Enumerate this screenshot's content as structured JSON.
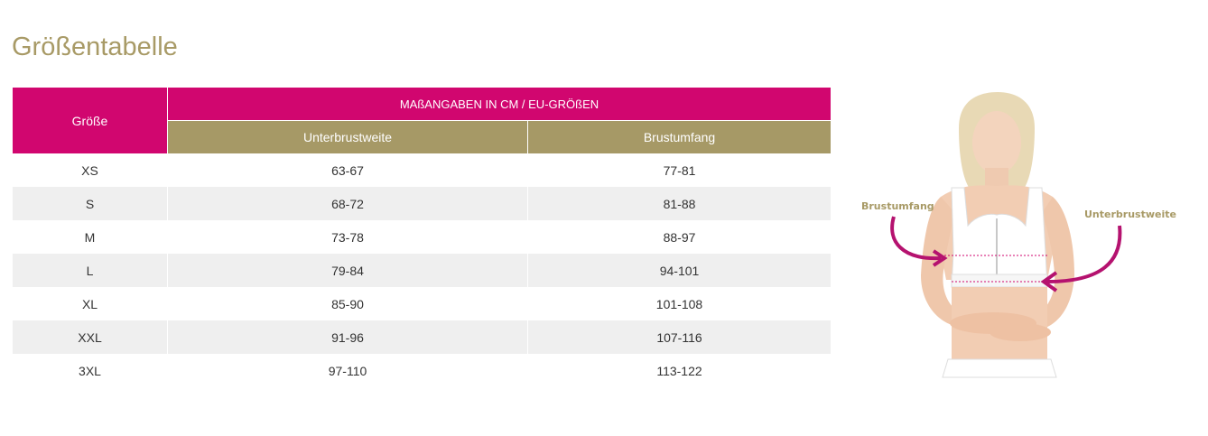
{
  "page": {
    "title": "Größentabelle"
  },
  "table": {
    "size_header": "Größe",
    "group_header": "MAßANGABEN IN CM / EU-GRÖßEN",
    "sub_headers": [
      "Unterbrustweite",
      "Brustumfang"
    ],
    "rows": [
      {
        "size": "XS",
        "underbust": "63-67",
        "bust": "77-81"
      },
      {
        "size": "S",
        "underbust": "68-72",
        "bust": "81-88"
      },
      {
        "size": "M",
        "underbust": "73-78",
        "bust": "88-97"
      },
      {
        "size": "L",
        "underbust": "79-84",
        "bust": "94-101"
      },
      {
        "size": "XL",
        "underbust": "85-90",
        "bust": "101-108"
      },
      {
        "size": "XXL",
        "underbust": "91-96",
        "bust": "107-116"
      },
      {
        "size": "3XL",
        "underbust": "97-110",
        "bust": "113-122"
      }
    ]
  },
  "figure": {
    "label_bust": "Brustumfang",
    "label_underbust": "Unterbrustweite"
  },
  "colors": {
    "magenta": "#d1066f",
    "gold": "#a69966",
    "row_alt": "#efefef"
  }
}
